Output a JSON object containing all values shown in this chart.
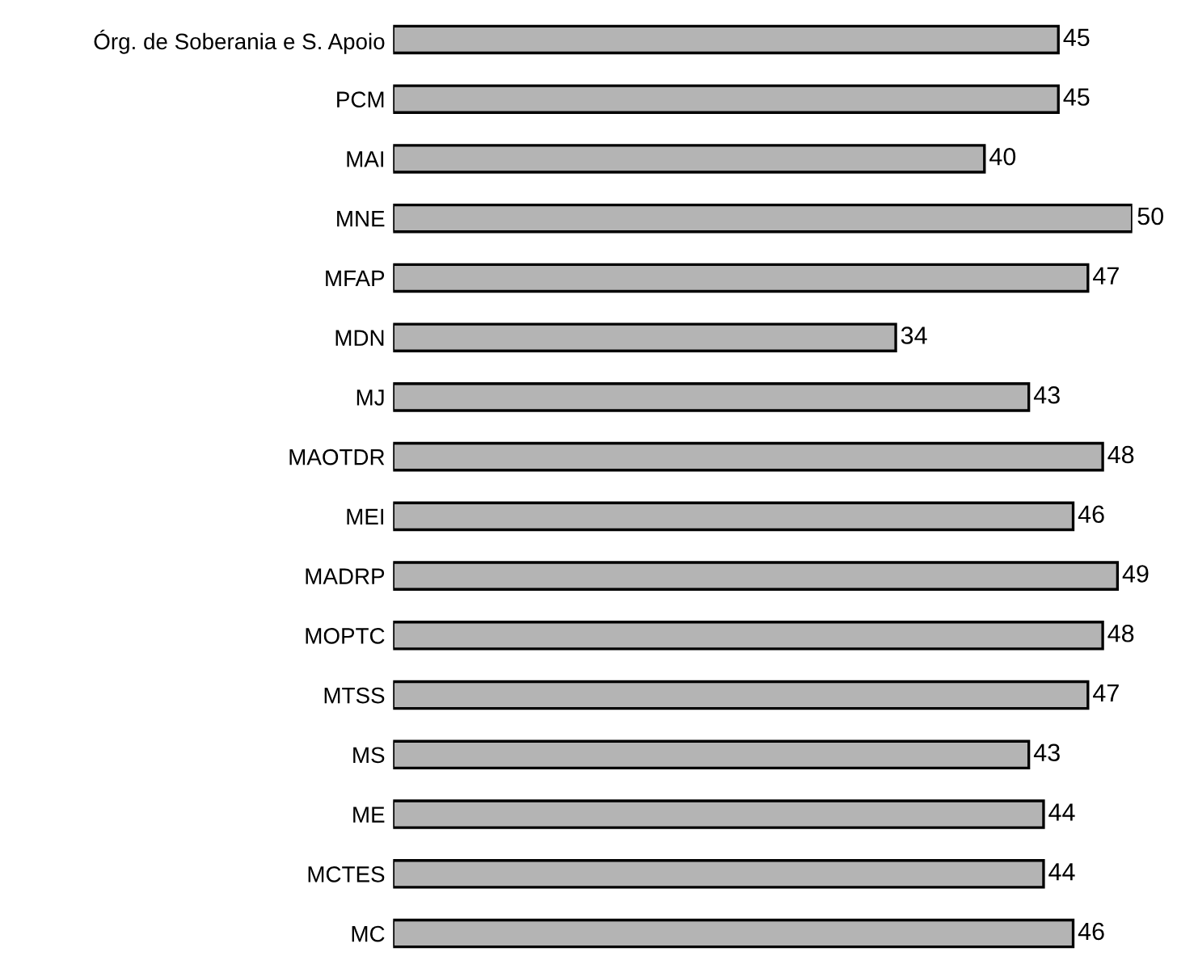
{
  "chart_data": {
    "type": "bar",
    "orientation": "horizontal",
    "categories": [
      "Órg. de Soberania e S. Apoio",
      "PCM",
      "MAI",
      "MNE",
      "MFAP",
      "MDN",
      "MJ",
      "MAOTDR",
      "MEI",
      "MADRP",
      "MOPTC",
      "MTSS",
      "MS",
      "ME",
      "MCTES",
      "MC"
    ],
    "values": [
      45,
      45,
      40,
      50,
      47,
      34,
      43,
      48,
      46,
      49,
      48,
      47,
      43,
      44,
      44,
      46
    ],
    "color": "#b4b4b4",
    "data_labels": true,
    "grid": false,
    "legend": false
  }
}
